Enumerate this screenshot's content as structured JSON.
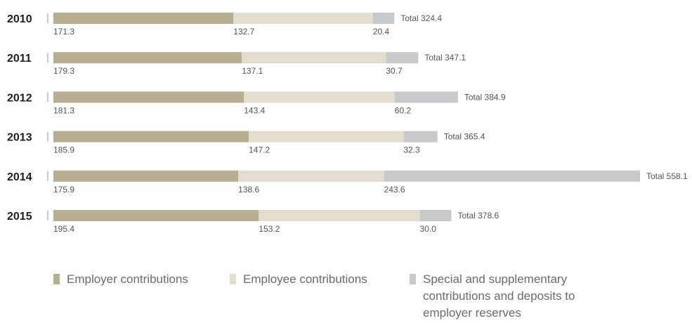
{
  "chart_data": {
    "type": "bar",
    "orientation": "horizontal",
    "stacked": true,
    "categories": [
      "2010",
      "2011",
      "2012",
      "2013",
      "2014",
      "2015"
    ],
    "series": [
      {
        "name": "Employer contributions",
        "color": "#b8af93",
        "values": [
          171.3,
          179.3,
          181.3,
          185.9,
          175.9,
          195.4
        ],
        "labels": [
          "171.3",
          "179.3",
          "181.3",
          "185.9",
          "175.9",
          "195.4"
        ]
      },
      {
        "name": "Employee contributions",
        "color": "#e3ddd0",
        "values": [
          132.7,
          137.1,
          143.4,
          147.2,
          138.6,
          153.2
        ],
        "labels": [
          "132.7",
          "137.1",
          "143.4",
          "147.2",
          "138.6",
          "153.2"
        ]
      },
      {
        "name": "Special and supplementary contributions and deposits to employer reserves",
        "legend_lines": [
          "Special and supplementary",
          "contributions and deposits to",
          "employer reserves"
        ],
        "color": "#c8c9ca",
        "values": [
          20.4,
          30.7,
          60.2,
          32.3,
          243.6,
          30.0
        ],
        "labels": [
          "20.4",
          "30.7",
          "60.2",
          "32.3",
          "243.6",
          "30.0"
        ]
      }
    ],
    "totals": [
      324.4,
      347.1,
      384.9,
      365.4,
      558.1,
      378.6
    ],
    "total_labels": [
      "Total 324.4",
      "Total 347.1",
      "Total 384.9",
      "Total 365.4",
      "Total 558.1",
      "Total 378.6"
    ],
    "title": "",
    "xlabel": "",
    "ylabel": "",
    "xlim": [
      0,
      558.1
    ],
    "grid": false,
    "legend_position": "bottom"
  }
}
